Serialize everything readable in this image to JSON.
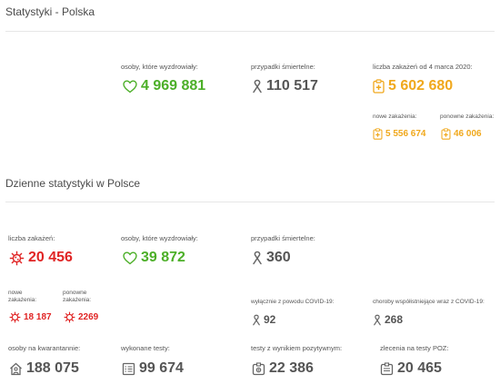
{
  "section1": {
    "title": "Statystyki - Polska",
    "recovered": {
      "label": "osoby, które wyzdrowiały:",
      "value": "4 969 881"
    },
    "deaths": {
      "label": "przypadki śmiertelne:",
      "value": "110 517"
    },
    "infections": {
      "label": "liczba zakażeń od 4 marca 2020:",
      "value": "5 602 680"
    },
    "new_infections": {
      "label": "nowe zakażenia:",
      "value": "5 556 674"
    },
    "re_infections": {
      "label": "ponowne zakażenia:",
      "value": "46 006"
    }
  },
  "section2": {
    "title": "Dzienne statystyki w Polsce",
    "infections": {
      "label": "liczba zakażeń:",
      "value": "20 456"
    },
    "recovered": {
      "label": "osoby, które wyzdrowiały:",
      "value": "39 872"
    },
    "deaths": {
      "label": "przypadki śmiertelne:",
      "value": "360"
    },
    "new_infections": {
      "label_1": "nowe",
      "label_2": "zakażenia:",
      "value": "18 187"
    },
    "re_infections": {
      "label_1": "ponowne",
      "label_2": "zakażenia:",
      "value": "2269"
    },
    "deaths_covid_only": {
      "label": "wyłącznie z powodu COVID-19:",
      "value": "92"
    },
    "deaths_comorbid": {
      "label": "choroby współistniejące wraz z COVID-19:",
      "value": "268"
    },
    "quarantine": {
      "label": "osoby na kwarantannie:",
      "value": "188 075"
    },
    "tests_done": {
      "label": "wykonane testy:",
      "value": "99 674"
    },
    "tests_positive": {
      "label": "testy z wynikiem pozytywnym:",
      "value": "22 386"
    },
    "tests_poz": {
      "label": "zlecenia na testy POZ:",
      "value": "20 465"
    }
  },
  "colors": {
    "green": "#4caf28",
    "orange": "#f0a81c",
    "red": "#e02424",
    "gray": "#555555"
  },
  "icons": [
    "heart-icon",
    "ribbon-icon",
    "clipboard-plus-icon",
    "virus-icon",
    "house-person-icon",
    "test-list-icon",
    "test-tube-icon"
  ]
}
